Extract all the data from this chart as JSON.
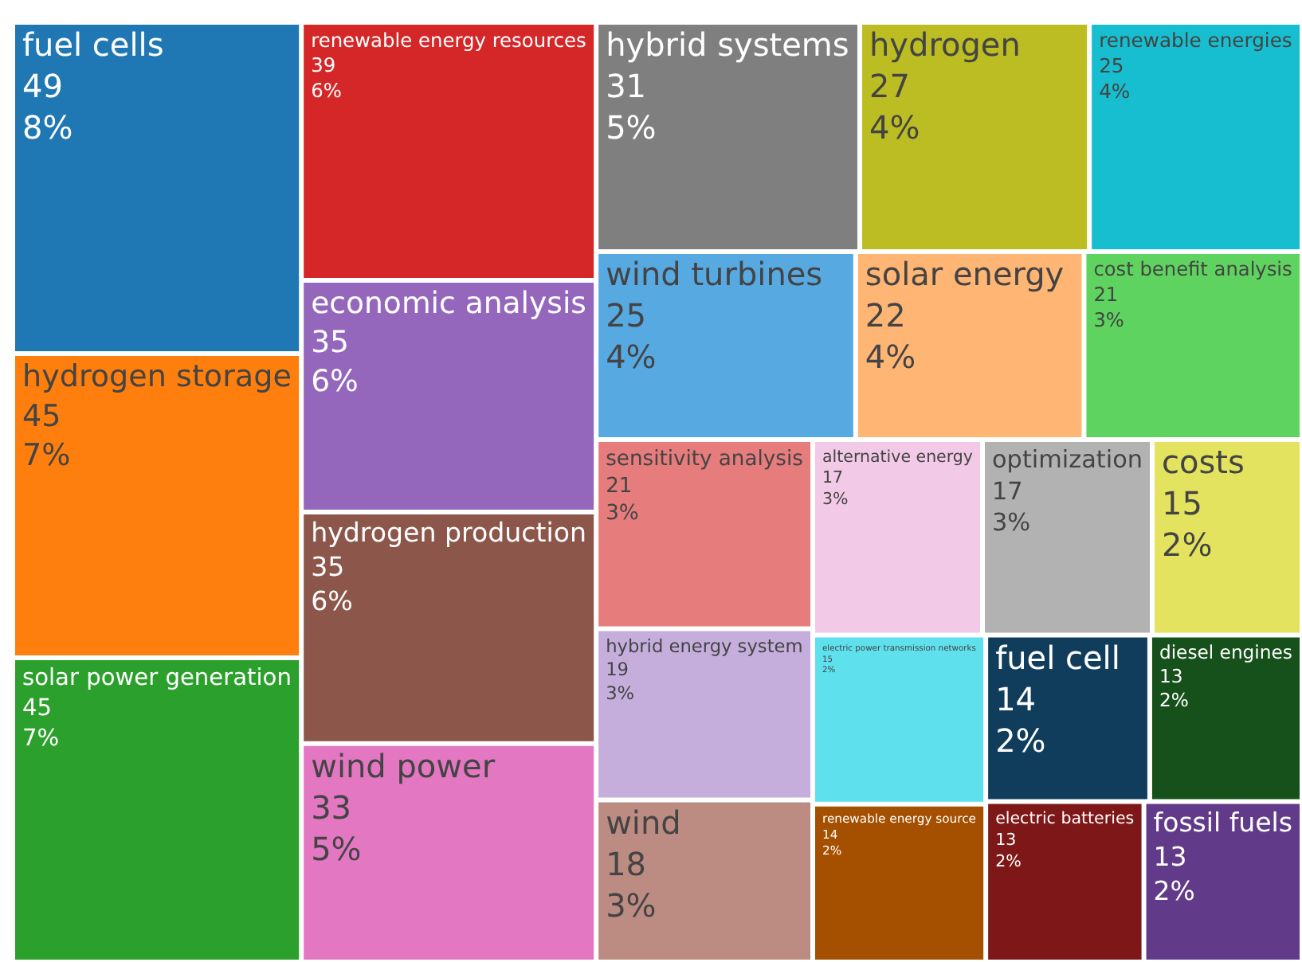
{
  "chart_data": {
    "type": "other",
    "categories": [
      "fuel cells",
      "hydrogen storage",
      "solar power generation",
      "renewable energy resources",
      "economic analysis",
      "hydrogen production",
      "wind power",
      "hybrid systems",
      "hydrogen",
      "renewable energies",
      "wind turbines",
      "solar energy",
      "cost benefit analysis",
      "sensitivity analysis",
      "hybrid energy system",
      "wind",
      "alternative energy",
      "optimization",
      "costs",
      "electric power transmission networks",
      "renewable energy source",
      "fuel cell",
      "diesel engines",
      "electric batteries",
      "fossil fuels"
    ],
    "values": [
      49,
      45,
      45,
      39,
      35,
      35,
      33,
      31,
      27,
      25,
      25,
      22,
      21,
      21,
      19,
      18,
      17,
      17,
      15,
      15,
      14,
      14,
      13,
      13,
      13
    ],
    "data_labels": true,
    "annotations": [
      {
        "text": "8%",
        "x": "fuel cells"
      },
      {
        "text": "7%",
        "x": "hydrogen storage"
      },
      {
        "text": "7%",
        "x": "solar power generation"
      },
      {
        "text": "6%",
        "x": "renewable energy resources"
      },
      {
        "text": "6%",
        "x": "economic analysis"
      },
      {
        "text": "6%",
        "x": "hydrogen production"
      },
      {
        "text": "5%",
        "x": "wind power"
      },
      {
        "text": "5%",
        "x": "hybrid systems"
      },
      {
        "text": "4%",
        "x": "hydrogen"
      },
      {
        "text": "4%",
        "x": "renewable energies"
      },
      {
        "text": "4%",
        "x": "wind turbines"
      },
      {
        "text": "4%",
        "x": "solar energy"
      },
      {
        "text": "3%",
        "x": "cost benefit analysis"
      },
      {
        "text": "3%",
        "x": "sensitivity analysis"
      },
      {
        "text": "3%",
        "x": "hybrid energy system"
      },
      {
        "text": "3%",
        "x": "wind"
      },
      {
        "text": "3%",
        "x": "alternative energy"
      },
      {
        "text": "3%",
        "x": "optimization"
      },
      {
        "text": "2%",
        "x": "costs"
      },
      {
        "text": "2%",
        "x": "electric power transmission networks"
      },
      {
        "text": "2%",
        "x": "renewable energy source"
      },
      {
        "text": "2%",
        "x": "fuel cell"
      },
      {
        "text": "2%",
        "x": "diesel engines"
      },
      {
        "text": "2%",
        "x": "electric batteries"
      },
      {
        "text": "2%",
        "x": "fossil fuels"
      }
    ],
    "colors": [
      "#1f77b4",
      "#ff7f0e",
      "#2ca02c",
      "#d62728",
      "#9467bd",
      "#8c564b",
      "#e377c2",
      "#7f7f7f",
      "#bcbd22",
      "#17becf",
      "#57a9e2",
      "#ffb574",
      "#5fd35f",
      "#e77c7c",
      "#c6aedc",
      "#bc8b81",
      "#f2c9e6",
      "#b2b2b2",
      "#e3e360",
      "#5fe0ed",
      "#a55000",
      "#103d5c",
      "#16501a",
      "#7e1718",
      "#613b89"
    ]
  }
}
